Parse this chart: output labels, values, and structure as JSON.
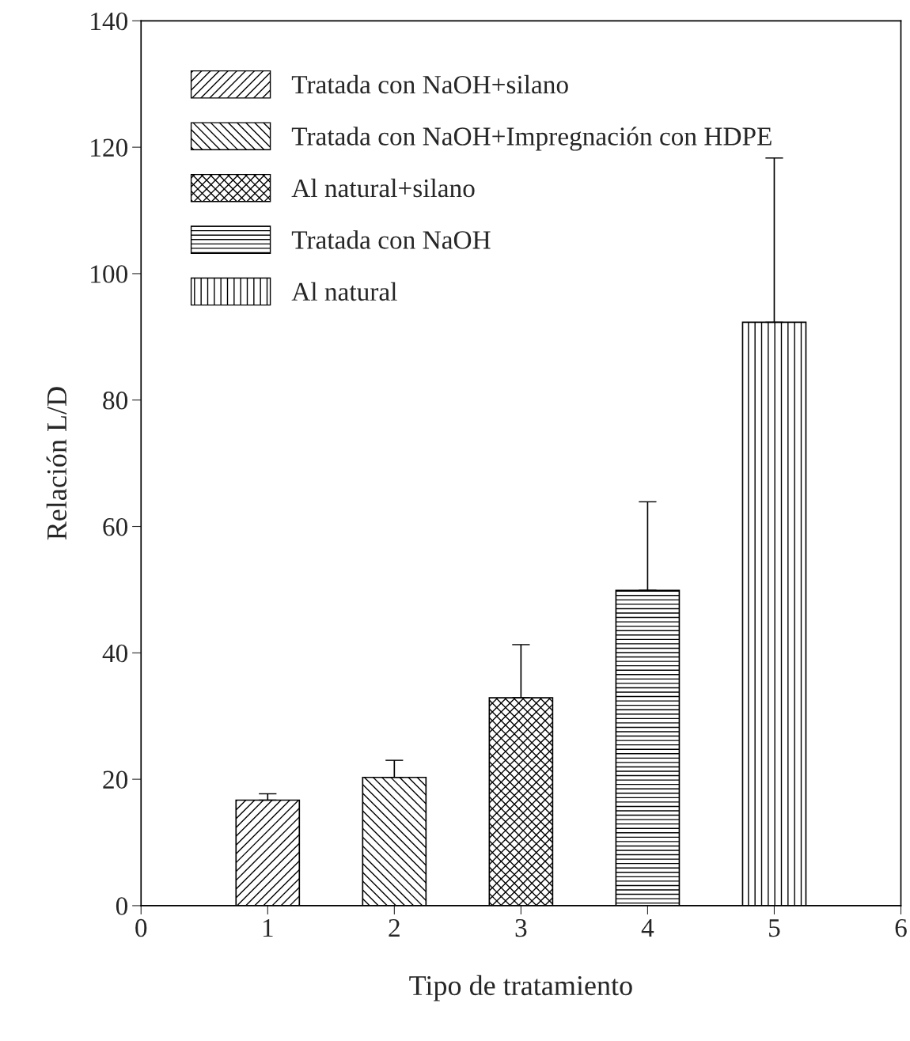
{
  "chart_data": {
    "type": "bar",
    "xlabel": "Tipo de tratamiento",
    "ylabel": "Relación L/D",
    "xlim": [
      0,
      6
    ],
    "xticks": [
      0,
      1,
      2,
      3,
      4,
      5,
      6
    ],
    "ylim": [
      0,
      140
    ],
    "yticks": [
      0,
      20,
      40,
      60,
      80,
      100,
      120,
      140
    ],
    "series": [
      {
        "name": "Tratada con NaOH+silano",
        "color": "#000000",
        "x": [
          1
        ],
        "values": [
          16.7
        ],
        "errors": [
          [
            16.7,
            17.7
          ]
        ]
      },
      {
        "name": "Tratada con NaOH+Impregnación con HDPE",
        "color": "#000000",
        "x": [
          2
        ],
        "values": [
          20.3
        ],
        "errors": [
          [
            20.3,
            23.0
          ]
        ]
      },
      {
        "name": "Al natural+silano",
        "color": "#000000",
        "x": [
          3
        ],
        "values": [
          32.9
        ],
        "errors": [
          [
            32.9,
            41.3
          ]
        ]
      },
      {
        "name": "Tratada con NaOH",
        "color": "#000000",
        "x": [
          4
        ],
        "values": [
          49.9
        ],
        "errors": [
          [
            49.9,
            63.9
          ]
        ]
      },
      {
        "name": "Al natural",
        "color": "#000000",
        "x": [
          5
        ],
        "values": [
          92.3
        ],
        "errors": [
          [
            92.3,
            118.3
          ]
        ]
      }
    ],
    "legend": "top left",
    "grid": false
  }
}
